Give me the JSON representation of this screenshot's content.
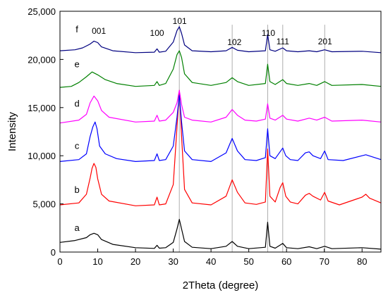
{
  "chart_data": {
    "type": "line",
    "xlabel": "2Theta (degree)",
    "ylabel": "Intensity",
    "xlim": [
      0,
      85
    ],
    "ylim": [
      0,
      25000
    ],
    "x_ticks": [
      0,
      10,
      20,
      30,
      40,
      50,
      60,
      70,
      80
    ],
    "y_ticks": [
      {
        "value": 0,
        "label": "0"
      },
      {
        "value": 5000,
        "label": "5,000"
      },
      {
        "value": 10000,
        "label": "10,000"
      },
      {
        "value": 15000,
        "label": "15,000"
      },
      {
        "value": 20000,
        "label": "20,000"
      },
      {
        "value": 25000,
        "label": "25,000"
      }
    ],
    "grid": false,
    "reference_lines": [
      31.6,
      45.6,
      55.0,
      59.0,
      70.1
    ],
    "peak_labels": [
      {
        "text": "001",
        "x": 10.3
      },
      {
        "text": "100",
        "x": 25.7
      },
      {
        "text": "101",
        "x": 31.7
      },
      {
        "text": "102",
        "x": 46.2
      },
      {
        "text": "110",
        "x": 55.2
      },
      {
        "text": "111",
        "x": 59.0
      },
      {
        "text": "201",
        "x": 70.2
      }
    ],
    "series": [
      {
        "name": "a",
        "color": "#000000",
        "label_x": 4.5,
        "label_y": 2200,
        "points": [
          [
            0,
            1000
          ],
          [
            4,
            1200
          ],
          [
            7,
            1500
          ],
          [
            8,
            1800
          ],
          [
            9,
            1950
          ],
          [
            10,
            1800
          ],
          [
            11,
            1300
          ],
          [
            14,
            800
          ],
          [
            20,
            450
          ],
          [
            25,
            380
          ],
          [
            25.7,
            700
          ],
          [
            26.3,
            400
          ],
          [
            28,
            450
          ],
          [
            30,
            1000
          ],
          [
            31,
            2400
          ],
          [
            31.6,
            3400
          ],
          [
            32.2,
            2400
          ],
          [
            33,
            1100
          ],
          [
            35,
            500
          ],
          [
            40,
            350
          ],
          [
            44,
            600
          ],
          [
            45.6,
            1100
          ],
          [
            47,
            600
          ],
          [
            50,
            350
          ],
          [
            54.4,
            500
          ],
          [
            55.0,
            3100
          ],
          [
            55.6,
            600
          ],
          [
            57,
            400
          ],
          [
            59,
            900
          ],
          [
            60,
            450
          ],
          [
            63,
            350
          ],
          [
            66,
            550
          ],
          [
            68,
            350
          ],
          [
            70.1,
            600
          ],
          [
            72,
            350
          ],
          [
            80,
            450
          ],
          [
            85,
            300
          ]
        ]
      },
      {
        "name": "b",
        "color": "#ff0000",
        "label_x": 4.5,
        "label_y": 6150,
        "points": [
          [
            0,
            4900
          ],
          [
            5,
            5100
          ],
          [
            7,
            6000
          ],
          [
            8,
            7700
          ],
          [
            8.5,
            8700
          ],
          [
            9,
            9200
          ],
          [
            9.5,
            8800
          ],
          [
            10,
            7600
          ],
          [
            11,
            6000
          ],
          [
            13,
            5300
          ],
          [
            20,
            4800
          ],
          [
            25,
            4900
          ],
          [
            25.7,
            5700
          ],
          [
            26.3,
            4900
          ],
          [
            28,
            5000
          ],
          [
            30,
            7000
          ],
          [
            31,
            13000
          ],
          [
            31.6,
            16800
          ],
          [
            32.2,
            12000
          ],
          [
            33,
            6500
          ],
          [
            35,
            5100
          ],
          [
            40,
            4900
          ],
          [
            44,
            5800
          ],
          [
            45.6,
            7500
          ],
          [
            47,
            6200
          ],
          [
            49,
            5100
          ],
          [
            52,
            4950
          ],
          [
            54.4,
            5200
          ],
          [
            55.0,
            10700
          ],
          [
            55.6,
            5800
          ],
          [
            57,
            5200
          ],
          [
            58.3,
            6700
          ],
          [
            59,
            7200
          ],
          [
            59.8,
            5800
          ],
          [
            61,
            5200
          ],
          [
            63,
            5000
          ],
          [
            65,
            5900
          ],
          [
            66,
            6100
          ],
          [
            67,
            5800
          ],
          [
            69,
            5400
          ],
          [
            70.1,
            6200
          ],
          [
            71,
            5300
          ],
          [
            74,
            4900
          ],
          [
            80,
            5700
          ],
          [
            81,
            6000
          ],
          [
            82,
            5600
          ],
          [
            85,
            5100
          ]
        ]
      },
      {
        "name": "c",
        "color": "#0000ff",
        "label_x": 4.5,
        "label_y": 10700,
        "points": [
          [
            0,
            9400
          ],
          [
            5,
            9600
          ],
          [
            7,
            10200
          ],
          [
            8,
            12000
          ],
          [
            8.7,
            13000
          ],
          [
            9.3,
            13500
          ],
          [
            9.8,
            12800
          ],
          [
            10.5,
            11000
          ],
          [
            12,
            10200
          ],
          [
            15,
            9700
          ],
          [
            20,
            9400
          ],
          [
            25,
            9500
          ],
          [
            25.7,
            10200
          ],
          [
            26.3,
            9500
          ],
          [
            28,
            9600
          ],
          [
            30,
            11000
          ],
          [
            31,
            14000
          ],
          [
            31.6,
            16300
          ],
          [
            32.2,
            13500
          ],
          [
            33,
            10500
          ],
          [
            35,
            9600
          ],
          [
            40,
            9400
          ],
          [
            44,
            10300
          ],
          [
            45.6,
            11800
          ],
          [
            47,
            10500
          ],
          [
            49,
            9600
          ],
          [
            52,
            9500
          ],
          [
            54.4,
            9800
          ],
          [
            55.0,
            12800
          ],
          [
            55.6,
            10000
          ],
          [
            57,
            9700
          ],
          [
            59,
            10800
          ],
          [
            59.8,
            10000
          ],
          [
            61,
            9600
          ],
          [
            63,
            9500
          ],
          [
            65,
            10300
          ],
          [
            66,
            10400
          ],
          [
            67,
            10000
          ],
          [
            69,
            9700
          ],
          [
            70.1,
            10500
          ],
          [
            71,
            9600
          ],
          [
            75,
            9500
          ],
          [
            80,
            10000
          ],
          [
            81,
            10100
          ],
          [
            85,
            9600
          ]
        ]
      },
      {
        "name": "d",
        "color": "#ff00ff",
        "label_x": 4.5,
        "label_y": 15100,
        "points": [
          [
            0,
            13400
          ],
          [
            5,
            13700
          ],
          [
            7,
            14300
          ],
          [
            8,
            15500
          ],
          [
            9,
            16200
          ],
          [
            10,
            15700
          ],
          [
            11,
            14700
          ],
          [
            13,
            14000
          ],
          [
            20,
            13500
          ],
          [
            25,
            13600
          ],
          [
            25.7,
            14200
          ],
          [
            26.3,
            13600
          ],
          [
            28,
            13700
          ],
          [
            30,
            14500
          ],
          [
            31,
            15500
          ],
          [
            31.6,
            16800
          ],
          [
            32.2,
            15300
          ],
          [
            33,
            14000
          ],
          [
            35,
            13700
          ],
          [
            40,
            13500
          ],
          [
            44,
            14000
          ],
          [
            45.6,
            14800
          ],
          [
            47,
            14200
          ],
          [
            49,
            13700
          ],
          [
            52,
            13600
          ],
          [
            54.4,
            13800
          ],
          [
            55.0,
            15400
          ],
          [
            55.6,
            13900
          ],
          [
            57,
            13700
          ],
          [
            59,
            14200
          ],
          [
            60,
            13800
          ],
          [
            63,
            13600
          ],
          [
            66,
            13900
          ],
          [
            68,
            13700
          ],
          [
            70.1,
            14000
          ],
          [
            72,
            13600
          ],
          [
            80,
            13700
          ],
          [
            85,
            13500
          ]
        ]
      },
      {
        "name": "e",
        "color": "#008000",
        "label_x": 4.5,
        "label_y": 19200,
        "points": [
          [
            0,
            17100
          ],
          [
            3,
            17200
          ],
          [
            5,
            17600
          ],
          [
            7,
            18200
          ],
          [
            8.5,
            18700
          ],
          [
            10,
            18400
          ],
          [
            12,
            17900
          ],
          [
            15,
            17500
          ],
          [
            20,
            17200
          ],
          [
            25,
            17300
          ],
          [
            25.7,
            17700
          ],
          [
            26.3,
            17300
          ],
          [
            28,
            17500
          ],
          [
            30,
            19000
          ],
          [
            31,
            20500
          ],
          [
            31.6,
            20900
          ],
          [
            32.2,
            20200
          ],
          [
            33,
            18500
          ],
          [
            35,
            17600
          ],
          [
            40,
            17300
          ],
          [
            44,
            17600
          ],
          [
            45.6,
            18100
          ],
          [
            47,
            17700
          ],
          [
            50,
            17300
          ],
          [
            54.4,
            17500
          ],
          [
            55.0,
            19500
          ],
          [
            55.6,
            17700
          ],
          [
            57,
            17400
          ],
          [
            59,
            17900
          ],
          [
            60,
            17500
          ],
          [
            63,
            17300
          ],
          [
            66,
            17500
          ],
          [
            68,
            17300
          ],
          [
            70.1,
            17700
          ],
          [
            72,
            17300
          ],
          [
            80,
            17400
          ],
          [
            85,
            17200
          ]
        ]
      },
      {
        "name": "f",
        "color": "#000080",
        "label_x": 4.5,
        "label_y": 22800,
        "points": [
          [
            0,
            20900
          ],
          [
            4,
            21000
          ],
          [
            6,
            21200
          ],
          [
            8,
            21600
          ],
          [
            9,
            21900
          ],
          [
            10,
            21750
          ],
          [
            11,
            21300
          ],
          [
            14,
            20900
          ],
          [
            20,
            20700
          ],
          [
            25,
            20750
          ],
          [
            25.7,
            21100
          ],
          [
            26.3,
            20750
          ],
          [
            28,
            20850
          ],
          [
            30,
            21800
          ],
          [
            31,
            23000
          ],
          [
            31.6,
            23400
          ],
          [
            32.2,
            22700
          ],
          [
            33,
            21500
          ],
          [
            35,
            20900
          ],
          [
            40,
            20800
          ],
          [
            44,
            20900
          ],
          [
            45.6,
            21250
          ],
          [
            47,
            20950
          ],
          [
            50,
            20800
          ],
          [
            54.4,
            20900
          ],
          [
            55.0,
            22600
          ],
          [
            55.6,
            21000
          ],
          [
            57,
            20850
          ],
          [
            59,
            21200
          ],
          [
            60,
            20900
          ],
          [
            63,
            20800
          ],
          [
            66,
            20900
          ],
          [
            68,
            20800
          ],
          [
            70.1,
            21000
          ],
          [
            72,
            20800
          ],
          [
            80,
            20850
          ],
          [
            85,
            20700
          ]
        ]
      }
    ]
  }
}
